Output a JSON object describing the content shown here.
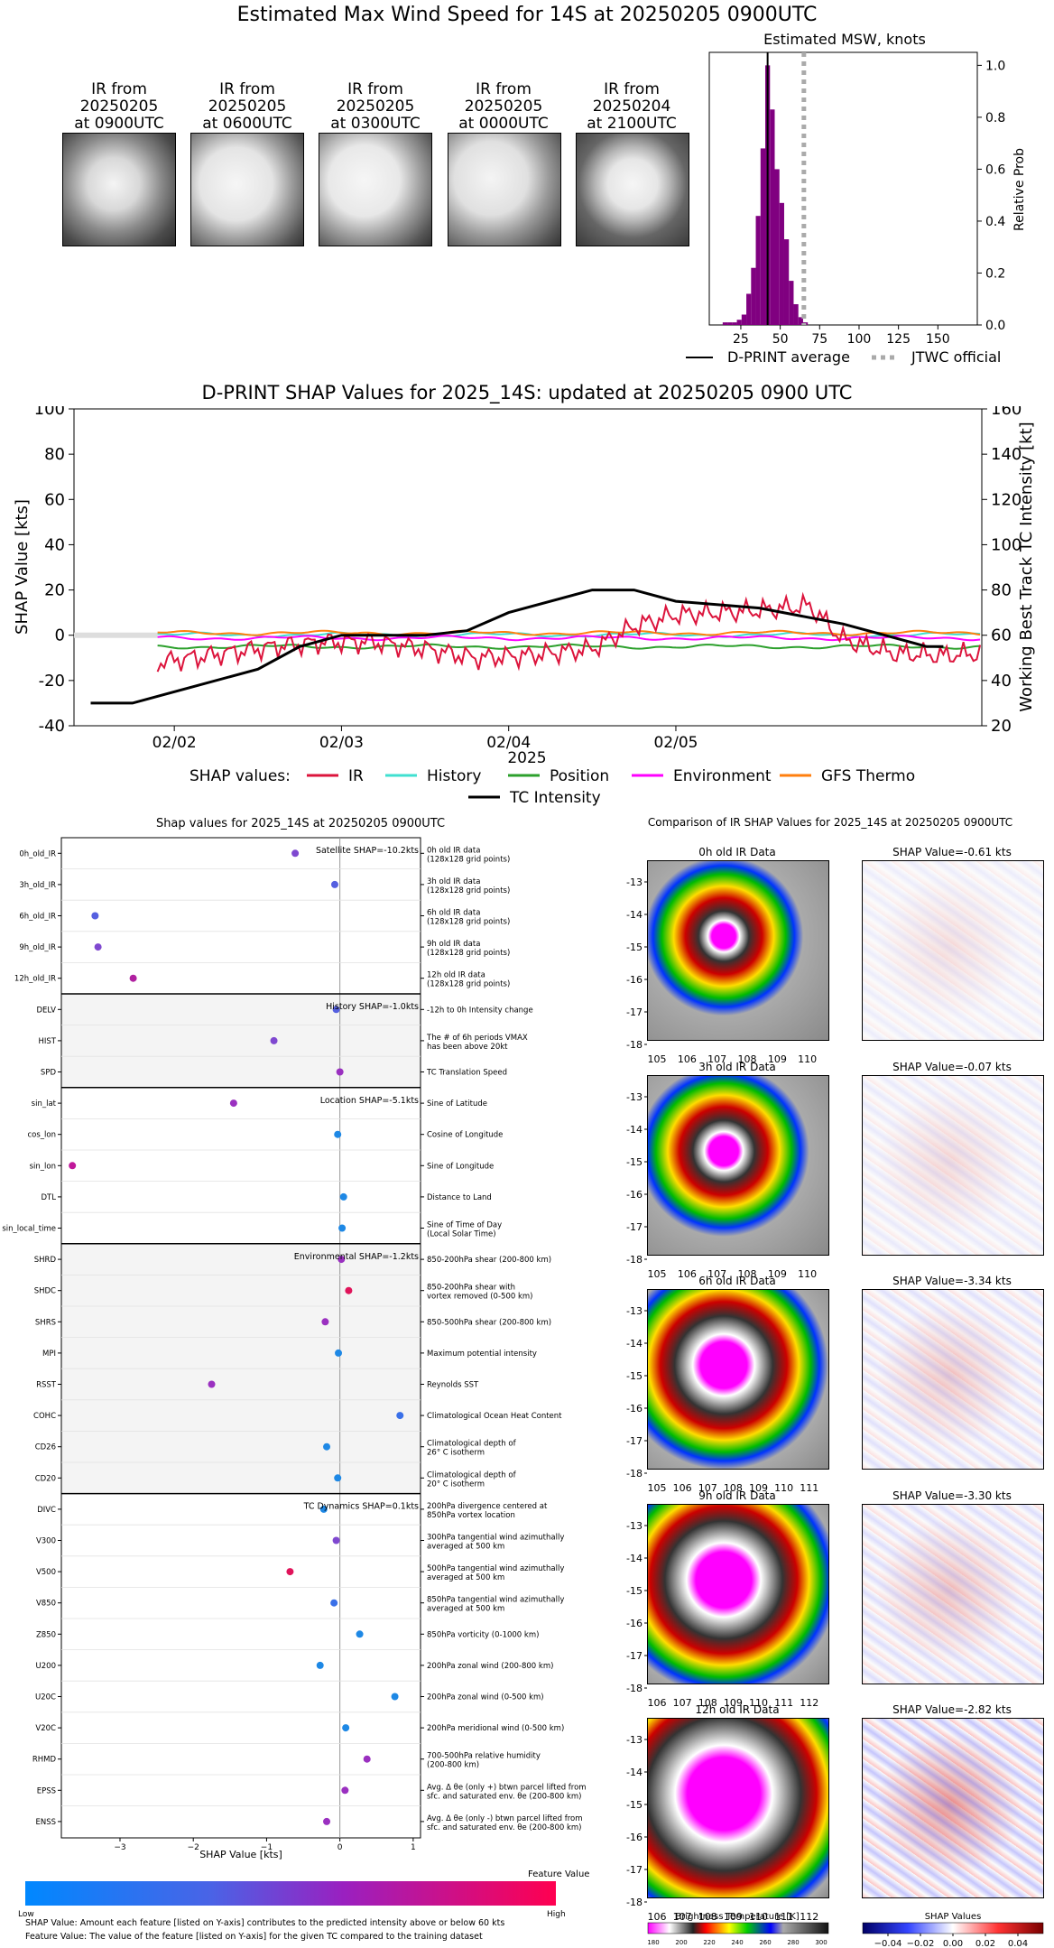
{
  "main_title": "Estimated Max Wind Speed for 14S at 20250205 0900UTC",
  "thumbnails": [
    {
      "line1": "IR from",
      "line2": "20250205",
      "line3": "at 0900UTC"
    },
    {
      "line1": "IR from",
      "line2": "20250205",
      "line3": "at 0600UTC"
    },
    {
      "line1": "IR from",
      "line2": "20250205",
      "line3": "at 0300UTC"
    },
    {
      "line1": "IR from",
      "line2": "20250205",
      "line3": "at 0000UTC"
    },
    {
      "line1": "IR from",
      "line2": "20250204",
      "line3": "at 2100UTC"
    }
  ],
  "msw_hist": {
    "title": "Estimated MSW, knots",
    "ylabel": "Relative Prob",
    "xticks": [
      "25",
      "50",
      "75",
      "100",
      "125",
      "150"
    ],
    "yticks": [
      "0.0",
      "0.2",
      "0.4",
      "0.6",
      "0.8",
      "1.0"
    ],
    "legend_dprint": "D-PRINT average",
    "legend_jtwc": "JTWC official",
    "colors": {
      "bars": "#800080",
      "jtwc": "#aaaaaa"
    }
  },
  "timeseries": {
    "title": "D-PRINT SHAP Values for 2025_14S: updated at 20250205 0900 UTC",
    "ylabel_left": "SHAP Value [kts]",
    "ylabel_right": "Working Best Track TC Intensity [kt]",
    "xlabel": "2025",
    "yticks_left": [
      "100",
      "80",
      "60",
      "40",
      "20",
      "0",
      "-20",
      "-40"
    ],
    "yticks_right": [
      "160",
      "140",
      "120",
      "100",
      "80",
      "60",
      "40",
      "20"
    ],
    "xticks": [
      "02/02",
      "02/03",
      "02/04",
      "02/05"
    ],
    "legend_label": "SHAP values:",
    "legend": [
      {
        "name": "IR",
        "color": "#dc143c"
      },
      {
        "name": "History",
        "color": "#40e0d0"
      },
      {
        "name": "Position",
        "color": "#2ca02c"
      },
      {
        "name": "Environment",
        "color": "#ff00ff"
      },
      {
        "name": "GFS Thermo",
        "color": "#ff7f0e"
      },
      {
        "name": "TC Intensity",
        "color": "#000000"
      }
    ]
  },
  "feature_panel": {
    "title": "Shap values for 2025_14S at 20250205 0900UTC",
    "xlabel": "SHAP Value [kts]",
    "xticks": [
      "−3",
      "−2",
      "−1",
      "0",
      "1"
    ],
    "groups": [
      {
        "label": "Satellite SHAP=-10.2kts"
      },
      {
        "label": "History SHAP=-1.0kts"
      },
      {
        "label": "Location SHAP=-5.1kts"
      },
      {
        "label": "Environmental SHAP=-1.2kts"
      },
      {
        "label": "TC Dynamics SHAP=0.1kts"
      }
    ],
    "features": [
      {
        "name": "0h_old_IR",
        "desc1": "0h old IR data",
        "desc2": "(128x128 grid points)"
      },
      {
        "name": "3h_old_IR",
        "desc1": "3h old IR data",
        "desc2": "(128x128 grid points)"
      },
      {
        "name": "6h_old_IR",
        "desc1": "6h old IR data",
        "desc2": "(128x128 grid points)"
      },
      {
        "name": "9h_old_IR",
        "desc1": "9h old IR data",
        "desc2": "(128x128 grid points)"
      },
      {
        "name": "12h_old_IR",
        "desc1": "12h old IR data",
        "desc2": "(128x128 grid points)"
      },
      {
        "name": "DELV",
        "desc1": "-12h to 0h Intensity change",
        "desc2": ""
      },
      {
        "name": "HIST",
        "desc1": "The # of 6h periods VMAX",
        "desc2": "has been above 20kt"
      },
      {
        "name": "SPD",
        "desc1": "TC Translation Speed",
        "desc2": ""
      },
      {
        "name": "sin_lat",
        "desc1": "Sine of Latitude",
        "desc2": ""
      },
      {
        "name": "cos_lon",
        "desc1": "Cosine of Longitude",
        "desc2": ""
      },
      {
        "name": "sin_lon",
        "desc1": "Sine of Longitude",
        "desc2": ""
      },
      {
        "name": "DTL",
        "desc1": "Distance to Land",
        "desc2": ""
      },
      {
        "name": "sin_local_time",
        "desc1": "Sine of Time of Day",
        "desc2": "(Local Solar Time)"
      },
      {
        "name": "SHRD",
        "desc1": "850-200hPa shear (200-800 km)",
        "desc2": ""
      },
      {
        "name": "SHDC",
        "desc1": "850-200hPa shear with",
        "desc2": "vortex removed (0-500 km)"
      },
      {
        "name": "SHRS",
        "desc1": "850-500hPa shear (200-800 km)",
        "desc2": ""
      },
      {
        "name": "MPI",
        "desc1": "Maximum potential intensity",
        "desc2": ""
      },
      {
        "name": "RSST",
        "desc1": "Reynolds SST",
        "desc2": ""
      },
      {
        "name": "COHC",
        "desc1": "Climatological Ocean Heat Content",
        "desc2": ""
      },
      {
        "name": "CD26",
        "desc1": "Climatological depth of",
        "desc2": "26° C isotherm"
      },
      {
        "name": "CD20",
        "desc1": "Climatological depth of",
        "desc2": "20° C isotherm"
      },
      {
        "name": "DIVC",
        "desc1": "200hPa divergence centered at",
        "desc2": "850hPa vortex location"
      },
      {
        "name": "V300",
        "desc1": "300hPa tangential wind azimuthally",
        "desc2": "averaged at 500 km"
      },
      {
        "name": "V500",
        "desc1": "500hPa tangential wind azimuthally",
        "desc2": "averaged at 500 km"
      },
      {
        "name": "V850",
        "desc1": "850hPa tangential wind azimuthally",
        "desc2": "averaged at 500 km"
      },
      {
        "name": "Z850",
        "desc1": "850hPa vorticity (0-1000 km)",
        "desc2": ""
      },
      {
        "name": "U200",
        "desc1": "200hPa zonal wind (200-800 km)",
        "desc2": ""
      },
      {
        "name": "U20C",
        "desc1": "200hPa zonal wind (0-500 km)",
        "desc2": ""
      },
      {
        "name": "V20C",
        "desc1": "200hPa meridional wind (0-500 km)",
        "desc2": ""
      },
      {
        "name": "RHMD",
        "desc1": "700-500hPa relative humidity",
        "desc2": "(200-800 km)"
      },
      {
        "name": "EPSS",
        "desc1": "Avg. Δ θe (only +) btwn parcel lifted from",
        "desc2": "sfc. and saturated env. θe (200-800 km)"
      },
      {
        "name": "ENSS",
        "desc1": "Avg. Δ θe (only -) btwn parcel lifted from",
        "desc2": "sfc. and saturated env. θe (200-800 km)"
      }
    ],
    "colorbar_title": "Feature Value",
    "colorbar_low": "Low",
    "colorbar_high": "High"
  },
  "ir_panel": {
    "title": "Comparison of IR SHAP Values for 2025_14S at 20250205 0900UTC",
    "rows": [
      {
        "ir_title": "0h old IR Data",
        "shap_title": "SHAP Value=-0.61 kts",
        "xticks": [
          "105",
          "106",
          "107",
          "108",
          "109",
          "110"
        ]
      },
      {
        "ir_title": "3h old IR Data",
        "shap_title": "SHAP Value=-0.07 kts",
        "xticks": [
          "105",
          "106",
          "107",
          "108",
          "109",
          "110"
        ]
      },
      {
        "ir_title": "6h old IR Data",
        "shap_title": "SHAP Value=-3.34 kts",
        "xticks": [
          "105",
          "106",
          "107",
          "108",
          "109",
          "110",
          "111"
        ]
      },
      {
        "ir_title": "9h old IR Data",
        "shap_title": "SHAP Value=-3.30 kts",
        "xticks": [
          "106",
          "107",
          "108",
          "109",
          "110",
          "111",
          "112"
        ]
      },
      {
        "ir_title": "12h old IR Data",
        "shap_title": "SHAP Value=-2.82 kts",
        "xticks": [
          "106",
          "107",
          "108",
          "109",
          "110",
          "111",
          "112"
        ]
      }
    ],
    "yticks": [
      "-13",
      "-14",
      "-15",
      "-16",
      "-17",
      "-18"
    ],
    "bt_label": "Brightness Temperature [K]",
    "bt_ticks": [
      "180",
      "200",
      "220",
      "240",
      "260",
      "280",
      "300"
    ],
    "sv_label": "SHAP Values",
    "sv_ticks": [
      "−0.04",
      "−0.02",
      "0.00",
      "0.02",
      "0.04"
    ]
  },
  "footnotes": {
    "line1": "SHAP Value: Amount each feature [listed on Y-axis] contributes to the predicted intensity above or below 60 kts",
    "line2": "Feature Value: The value of the feature [listed on Y-axis] for the given TC compared to the training dataset"
  },
  "chart_data": [
    {
      "type": "bar",
      "title": "Estimated MSW, knots",
      "xlabel": "",
      "ylabel": "Relative Prob",
      "xlim": [
        5,
        175
      ],
      "ylim": [
        0,
        1.05
      ],
      "x": [
        15,
        18,
        21,
        24,
        27,
        30,
        33,
        36,
        39,
        42,
        45,
        48,
        51,
        54,
        57,
        60,
        63,
        66
      ],
      "values": [
        0.01,
        0.01,
        0.01,
        0.02,
        0.04,
        0.12,
        0.22,
        0.42,
        0.68,
        1.0,
        0.83,
        0.6,
        0.47,
        0.33,
        0.17,
        0.08,
        0.03,
        0.01
      ],
      "lines": [
        {
          "name": "D-PRINT average",
          "x": 42
        },
        {
          "name": "JTWC official",
          "x": 65
        }
      ]
    },
    {
      "type": "line",
      "title": "D-PRINT SHAP Values for 2025_14S: updated at 20250205 0900 UTC",
      "xlabel": "2025",
      "ylabel": "SHAP Value [kts]",
      "ylim": [
        -40,
        100
      ],
      "y2label": "Working Best Track TC Intensity [kt]",
      "y2lim": [
        20,
        160
      ],
      "x_categories": [
        "02/02",
        "02/03",
        "02/04",
        "02/05"
      ],
      "tc_intensity": {
        "x_days": [
          0.5,
          0.75,
          1.5,
          1.75,
          2.0,
          2.5,
          2.75,
          3.0,
          3.5,
          3.75,
          4.0,
          4.5,
          5.0,
          5.25,
          5.5,
          5.6
        ],
        "y": [
          30,
          30,
          45,
          55,
          60,
          60,
          62,
          70,
          80,
          80,
          75,
          72,
          65,
          60,
          55,
          55
        ]
      },
      "series": [
        {
          "name": "IR",
          "y_range": [
            -15,
            22
          ]
        },
        {
          "name": "History",
          "y_const": 0
        },
        {
          "name": "Position",
          "y_const": -5
        },
        {
          "name": "Environment",
          "y_const": -1
        },
        {
          "name": "GFS Thermo",
          "y_const": 1
        }
      ]
    },
    {
      "type": "scatter",
      "title": "Shap values for 2025_14S at 20250205 0900UTC",
      "xlabel": "SHAP Value [kts]",
      "xlim": [
        -3.8,
        1.1
      ],
      "points": [
        {
          "feature": "0h_old_IR",
          "shap": -0.61,
          "color": "#7f48d0"
        },
        {
          "feature": "3h_old_IR",
          "shap": -0.07,
          "color": "#5560e0"
        },
        {
          "feature": "6h_old_IR",
          "shap": -3.34,
          "color": "#5560e0"
        },
        {
          "feature": "9h_old_IR",
          "shap": -3.3,
          "color": "#7f48d0"
        },
        {
          "feature": "12h_old_IR",
          "shap": -2.82,
          "color": "#b020a0"
        },
        {
          "feature": "DELV",
          "shap": -0.05,
          "color": "#5560e0"
        },
        {
          "feature": "HIST",
          "shap": -0.9,
          "color": "#7f48d0"
        },
        {
          "feature": "SPD",
          "shap": 0.0,
          "color": "#9a30c0"
        },
        {
          "feature": "sin_lat",
          "shap": -1.45,
          "color": "#9a30c0"
        },
        {
          "feature": "cos_lon",
          "shap": -0.03,
          "color": "#1e88e5"
        },
        {
          "feature": "sin_lon",
          "shap": -3.65,
          "color": "#c0189a"
        },
        {
          "feature": "DTL",
          "shap": 0.05,
          "color": "#1e88e5"
        },
        {
          "feature": "sin_local_time",
          "shap": 0.03,
          "color": "#1e88e5"
        },
        {
          "feature": "SHRD",
          "shap": 0.02,
          "color": "#9a30c0"
        },
        {
          "feature": "SHDC",
          "shap": 0.12,
          "color": "#e0145a"
        },
        {
          "feature": "SHRS",
          "shap": -0.2,
          "color": "#9a30c0"
        },
        {
          "feature": "MPI",
          "shap": -0.02,
          "color": "#1e88e5"
        },
        {
          "feature": "RSST",
          "shap": -1.75,
          "color": "#9a30c0"
        },
        {
          "feature": "COHC",
          "shap": 0.82,
          "color": "#3a70e8"
        },
        {
          "feature": "CD26",
          "shap": -0.18,
          "color": "#1e88e5"
        },
        {
          "feature": "CD20",
          "shap": -0.03,
          "color": "#1e88e5"
        },
        {
          "feature": "DIVC",
          "shap": -0.22,
          "color": "#1e88e5"
        },
        {
          "feature": "V300",
          "shap": -0.05,
          "color": "#7f48d0"
        },
        {
          "feature": "V500",
          "shap": -0.68,
          "color": "#e0145a"
        },
        {
          "feature": "V850",
          "shap": -0.08,
          "color": "#3a70e8"
        },
        {
          "feature": "Z850",
          "shap": 0.27,
          "color": "#1e88e5"
        },
        {
          "feature": "U200",
          "shap": -0.27,
          "color": "#1e88e5"
        },
        {
          "feature": "U20C",
          "shap": 0.75,
          "color": "#1e88e5"
        },
        {
          "feature": "V20C",
          "shap": 0.08,
          "color": "#1e88e5"
        },
        {
          "feature": "RHMD",
          "shap": 0.37,
          "color": "#9a30c0"
        },
        {
          "feature": "EPSS",
          "shap": 0.07,
          "color": "#9a30c0"
        },
        {
          "feature": "ENSS",
          "shap": -0.18,
          "color": "#9a30c0"
        }
      ]
    }
  ]
}
